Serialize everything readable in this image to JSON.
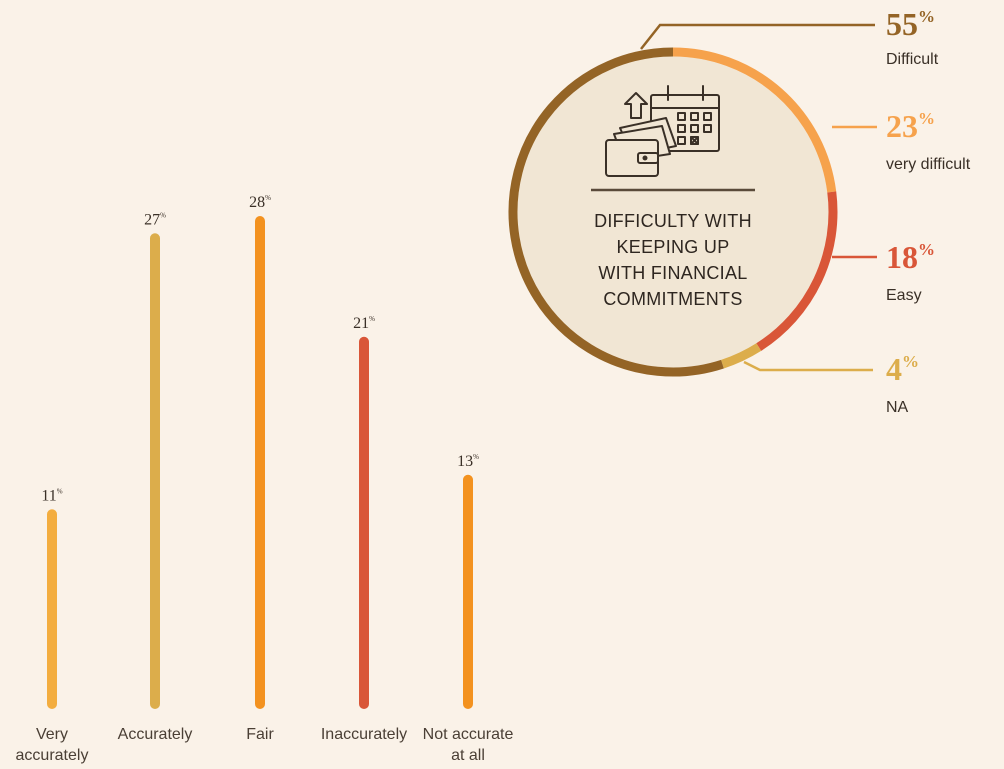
{
  "colors": {
    "background": "#faf2e8",
    "very_accurately": "#f3ad3f",
    "accurately": "#dcad4b",
    "fair": "#f3921f",
    "inaccurately": "#d95638",
    "not_accurate": "#f3921f",
    "difficult": "#946426",
    "very_difficult": "#f6a24c",
    "easy": "#d95638",
    "na": "#dcad4b",
    "center_fill": "#f1e6d4"
  },
  "chart_data": [
    {
      "type": "bar",
      "categories": [
        [
          "Very",
          "accurately"
        ],
        [
          "Accurately"
        ],
        [
          "Fair"
        ],
        [
          "Inaccurately"
        ],
        [
          "Not accurate",
          "at all"
        ]
      ],
      "values": [
        11,
        27,
        28,
        21,
        13
      ],
      "value_suffix": "%",
      "ylim": [
        0,
        28
      ],
      "grid": false
    },
    {
      "type": "pie",
      "style": "donut",
      "title": [
        "DIFFICULTY WITH",
        "KEEPING UP",
        "WITH FINANCIAL",
        "COMMITMENTS"
      ],
      "icon": "wallet-calendar-icon",
      "slices": [
        {
          "label": "Difficult",
          "value": 55
        },
        {
          "label": "very difficult",
          "value": 23
        },
        {
          "label": "Easy",
          "value": 18
        },
        {
          "label": "NA",
          "value": 4
        }
      ],
      "value_suffix": "%"
    }
  ]
}
